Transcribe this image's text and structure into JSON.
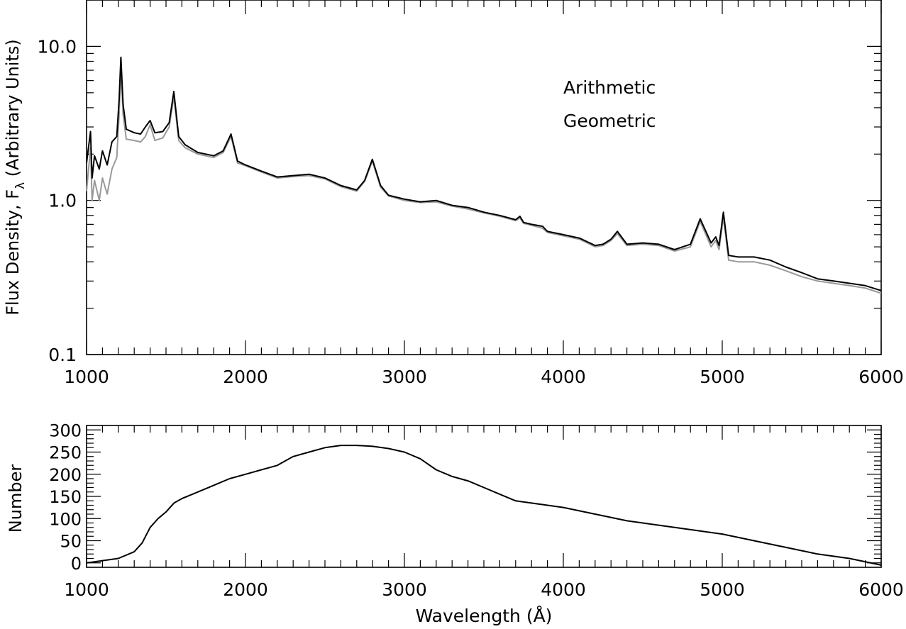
{
  "chart_data": [
    {
      "type": "line",
      "xlabel": "",
      "ylabel": "Flux Density, F",
      "ylabel_subscript": "λ",
      "ylabel_tail": "(Arbitrary Units)",
      "xlim": [
        1000,
        6000
      ],
      "ylim": [
        0.1,
        20
      ],
      "yscale": "log",
      "xticks": [
        1000,
        2000,
        3000,
        4000,
        5000,
        6000
      ],
      "xtick_labels": [
        "1000",
        "2000",
        "3000",
        "4000",
        "5000",
        "6000"
      ],
      "yticks": [
        0.1,
        1.0,
        10.0
      ],
      "ytick_labels": [
        "0.1",
        "1.0",
        "10.0"
      ],
      "grid": false,
      "legend_position": "top-right",
      "series": [
        {
          "name": "Arithmetic",
          "color": "#000000",
          "x": [
            1000,
            1025,
            1035,
            1050,
            1080,
            1100,
            1130,
            1160,
            1190,
            1205,
            1216,
            1230,
            1250,
            1300,
            1340,
            1370,
            1400,
            1430,
            1480,
            1520,
            1549,
            1580,
            1620,
            1700,
            1800,
            1860,
            1909,
            1950,
            2000,
            2100,
            2200,
            2300,
            2400,
            2500,
            2600,
            2700,
            2750,
            2798,
            2850,
            2900,
            3000,
            3100,
            3200,
            3300,
            3400,
            3500,
            3600,
            3700,
            3727,
            3750,
            3800,
            3869,
            3900,
            4000,
            4102,
            4150,
            4200,
            4250,
            4300,
            4340,
            4400,
            4500,
            4600,
            4700,
            4800,
            4861,
            4900,
            4930,
            4959,
            4980,
            5007,
            5040,
            5100,
            5200,
            5300,
            5400,
            5500,
            5600,
            5700,
            5800,
            5900,
            6000
          ],
          "values": [
            1.75,
            2.8,
            1.4,
            1.95,
            1.6,
            2.1,
            1.7,
            2.4,
            2.6,
            4.5,
            8.5,
            4.2,
            2.9,
            2.75,
            2.7,
            3.0,
            3.3,
            2.75,
            2.8,
            3.2,
            5.1,
            2.6,
            2.3,
            2.05,
            1.95,
            2.1,
            2.7,
            1.8,
            1.7,
            1.55,
            1.42,
            1.45,
            1.48,
            1.4,
            1.25,
            1.17,
            1.35,
            1.85,
            1.25,
            1.08,
            1.02,
            0.98,
            1.0,
            0.93,
            0.9,
            0.84,
            0.8,
            0.75,
            0.79,
            0.72,
            0.7,
            0.68,
            0.63,
            0.6,
            0.57,
            0.54,
            0.51,
            0.52,
            0.56,
            0.63,
            0.52,
            0.53,
            0.52,
            0.48,
            0.52,
            0.76,
            0.62,
            0.53,
            0.58,
            0.51,
            0.84,
            0.44,
            0.43,
            0.43,
            0.41,
            0.37,
            0.34,
            0.31,
            0.3,
            0.29,
            0.28,
            0.26
          ]
        },
        {
          "name": "Geometric",
          "color": "#999999",
          "x": [
            1000,
            1025,
            1035,
            1050,
            1080,
            1100,
            1130,
            1160,
            1190,
            1205,
            1216,
            1230,
            1250,
            1300,
            1340,
            1370,
            1400,
            1430,
            1480,
            1520,
            1549,
            1580,
            1620,
            1700,
            1800,
            1860,
            1909,
            1950,
            2000,
            2100,
            2200,
            2300,
            2400,
            2500,
            2600,
            2700,
            2750,
            2798,
            2850,
            2900,
            3000,
            3100,
            3200,
            3300,
            3400,
            3500,
            3600,
            3700,
            3727,
            3750,
            3800,
            3869,
            3900,
            4000,
            4102,
            4150,
            4200,
            4250,
            4300,
            4340,
            4400,
            4500,
            4600,
            4700,
            4800,
            4861,
            4900,
            4930,
            4959,
            4980,
            5007,
            5040,
            5100,
            5200,
            5300,
            5400,
            5500,
            5600,
            5700,
            5800,
            5900,
            6000
          ],
          "values": [
            1.15,
            2.2,
            1.0,
            1.35,
            1.0,
            1.4,
            1.1,
            1.6,
            1.9,
            3.6,
            7.2,
            3.6,
            2.5,
            2.45,
            2.4,
            2.6,
            3.1,
            2.45,
            2.55,
            3.0,
            4.7,
            2.45,
            2.2,
            2.0,
            1.9,
            2.05,
            2.6,
            1.75,
            1.68,
            1.53,
            1.4,
            1.43,
            1.45,
            1.38,
            1.23,
            1.15,
            1.33,
            1.8,
            1.22,
            1.07,
            1.0,
            0.97,
            0.98,
            0.92,
            0.88,
            0.83,
            0.79,
            0.74,
            0.77,
            0.71,
            0.69,
            0.66,
            0.62,
            0.59,
            0.56,
            0.53,
            0.5,
            0.51,
            0.55,
            0.61,
            0.51,
            0.52,
            0.51,
            0.47,
            0.5,
            0.73,
            0.59,
            0.5,
            0.55,
            0.48,
            0.78,
            0.41,
            0.4,
            0.4,
            0.38,
            0.35,
            0.32,
            0.3,
            0.29,
            0.28,
            0.27,
            0.25
          ]
        }
      ]
    },
    {
      "type": "line",
      "xlabel": "Wavelength (Å)",
      "ylabel": "Number",
      "xlim": [
        1000,
        6000
      ],
      "ylim": [
        -10,
        310
      ],
      "xticks": [
        1000,
        2000,
        3000,
        4000,
        5000,
        6000
      ],
      "xtick_labels": [
        "1000",
        "2000",
        "3000",
        "4000",
        "5000",
        "6000"
      ],
      "yticks": [
        0,
        50,
        100,
        150,
        200,
        250,
        300
      ],
      "ytick_labels": [
        "0",
        "50",
        "100",
        "150",
        "200",
        "250",
        "300"
      ],
      "grid": false,
      "series": [
        {
          "color": "#000000",
          "x": [
            1000,
            1100,
            1200,
            1300,
            1350,
            1400,
            1450,
            1500,
            1550,
            1600,
            1700,
            1800,
            1900,
            2000,
            2100,
            2200,
            2300,
            2400,
            2500,
            2600,
            2700,
            2800,
            2900,
            3000,
            3100,
            3200,
            3300,
            3400,
            3500,
            3600,
            3700,
            3800,
            3900,
            4000,
            4200,
            4400,
            4600,
            4800,
            5000,
            5200,
            5400,
            5600,
            5800,
            6000
          ],
          "values": [
            0,
            5,
            10,
            25,
            45,
            80,
            100,
            115,
            135,
            145,
            160,
            175,
            190,
            200,
            210,
            220,
            240,
            250,
            260,
            265,
            265,
            263,
            258,
            250,
            235,
            210,
            195,
            185,
            170,
            155,
            140,
            135,
            130,
            125,
            110,
            95,
            85,
            75,
            65,
            50,
            35,
            20,
            10,
            -5
          ]
        }
      ]
    }
  ]
}
